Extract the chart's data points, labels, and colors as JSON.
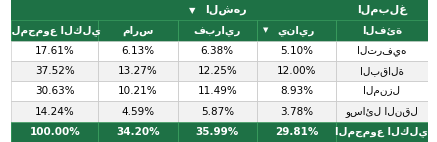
{
  "header_bg": "#1E7145",
  "header_text_color": "#FFFFFF",
  "subheader_bg": "#1E7145",
  "subheader_text_color": "#FFFFFF",
  "row_bg": "#FFFFFF",
  "total_bg": "#1E7145",
  "total_text_color": "#FFFFFF",
  "border_color": "#CCCCCC",
  "col_headers": [
    "الفئة",
    "يناير",
    "فبراير",
    "مارس",
    "المجموع الكلي"
  ],
  "month_header": "الشهر",
  "amount_header": "المبلغ",
  "rows": [
    [
      "الترفيه",
      "5.10%",
      "6.38%",
      "6.13%",
      "17.61%"
    ],
    [
      "البقالة",
      "12.00%",
      "12.25%",
      "13.27%",
      "37.52%"
    ],
    [
      "المنزل",
      "8.93%",
      "11.49%",
      "10.21%",
      "30.63%"
    ],
    [
      "وسائل النقل",
      "3.78%",
      "5.87%",
      "4.59%",
      "14.24%"
    ]
  ],
  "total_row": [
    "المجموع الكلي",
    "29.81%",
    "35.99%",
    "34.20%",
    "100.00%"
  ],
  "figsize": [
    4.37,
    1.42
  ],
  "dpi": 100
}
